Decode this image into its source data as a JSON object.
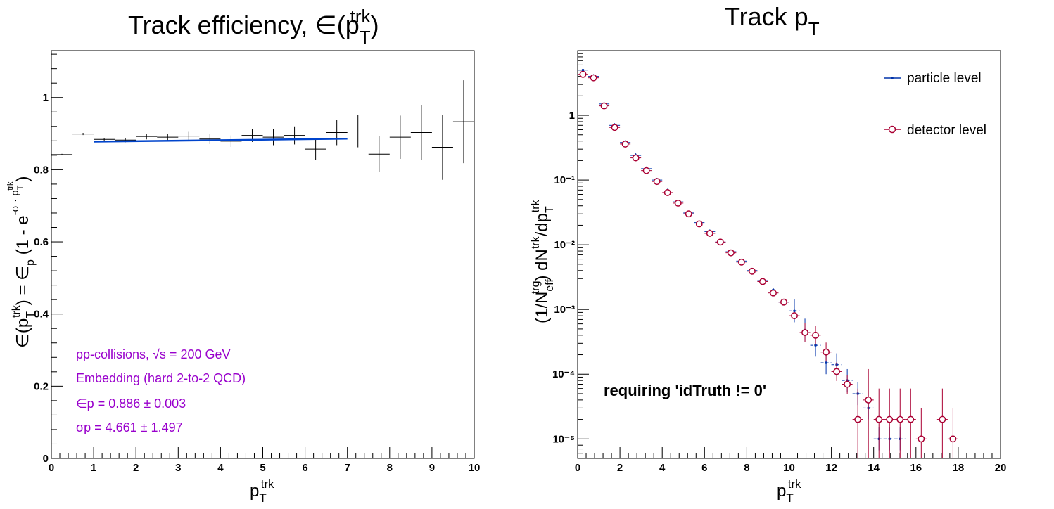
{
  "colors": {
    "fit": "#0044cc",
    "annotation": "#9900cc",
    "particle": "#0033aa",
    "detector": "#aa0033"
  },
  "chart_data": [
    {
      "type": "scatter",
      "title_main": "Track efficiency, ∈(p",
      "title_sup": "trk",
      "title_sub": "T",
      "title_close": ")",
      "xlabel_main": "p",
      "xlabel_sup": "trk",
      "xlabel_sub": "T",
      "ylabel": "∈(pTtrk) = ∈p (1 - e-σ · pTtrk)",
      "xlim": [
        0,
        10
      ],
      "ylim": [
        0,
        1.13
      ],
      "x_ticks": [
        0,
        1,
        2,
        3,
        4,
        5,
        6,
        7,
        8,
        9,
        10
      ],
      "y_ticks": [
        0,
        0.2,
        0.4,
        0.6,
        0.8,
        1
      ],
      "grid": false,
      "bin_width": 0.5,
      "series": [
        {
          "x": [
            0.25,
            0.75,
            1.25,
            1.75,
            2.25,
            2.75,
            3.25,
            3.75,
            4.25,
            4.75,
            5.25,
            5.75,
            6.25,
            6.75,
            7.25,
            7.75,
            8.25,
            8.75,
            9.25,
            9.75
          ],
          "y": [
            0.842,
            0.899,
            0.884,
            0.882,
            0.892,
            0.89,
            0.893,
            0.885,
            0.879,
            0.895,
            0.89,
            0.895,
            0.857,
            0.903,
            0.907,
            0.843,
            0.89,
            0.903,
            0.862,
            0.933
          ],
          "yerr": [
            0.002,
            0.003,
            0.004,
            0.006,
            0.008,
            0.01,
            0.012,
            0.014,
            0.016,
            0.018,
            0.022,
            0.025,
            0.03,
            0.035,
            0.045,
            0.05,
            0.06,
            0.075,
            0.09,
            0.115
          ]
        }
      ],
      "fit": {
        "type": "line",
        "x_range": [
          1.0,
          7.0
        ],
        "epsilon_p": 0.886,
        "sigma_p": 4.661
      },
      "annotations": [
        "pp-collisions, √s = 200 GeV",
        "Embedding (hard 2-to-2 QCD)",
        "∈p = 0.886 ± 0.003",
        "σp = 4.661 ± 1.497"
      ]
    },
    {
      "type": "scatter",
      "title_main": "Track p",
      "title_sub": "T",
      "xlabel_main": "p",
      "xlabel_sup": "trk",
      "xlabel_sub": "T",
      "ylabel": "(1/Neff^trg) dN^trk/dpT^trk",
      "xlim": [
        0,
        20
      ],
      "ylim": [
        5e-06,
        10
      ],
      "yscale": "log",
      "x_ticks": [
        0,
        2,
        4,
        6,
        8,
        10,
        12,
        14,
        16,
        18,
        20
      ],
      "y_ticks": [
        "10⁻⁵",
        "10⁻⁴",
        "10⁻³",
        "10⁻²",
        "10⁻¹",
        "1"
      ],
      "grid": false,
      "legend": {
        "placement": "top-right",
        "entries": [
          "particle level",
          "detector level"
        ]
      },
      "annotation": "requiring 'idTruth != 0'",
      "bin_width": 0.5,
      "series": [
        {
          "name": "particle level",
          "x": [
            0.25,
            0.75,
            1.25,
            1.75,
            2.25,
            2.75,
            3.25,
            3.75,
            4.25,
            4.75,
            5.25,
            5.75,
            6.25,
            6.75,
            7.25,
            7.75,
            8.25,
            8.75,
            9.25,
            9.75,
            10.25,
            10.75,
            11.25,
            11.75,
            12.25,
            12.75,
            13.25,
            13.75,
            14.25,
            14.75,
            15.25
          ],
          "y": [
            5.0,
            4.0,
            1.5,
            0.7,
            0.38,
            0.24,
            0.15,
            0.1,
            0.068,
            0.046,
            0.031,
            0.022,
            0.016,
            0.011,
            0.0078,
            0.0056,
            0.004,
            0.0028,
            0.002,
            0.0013,
            0.00095,
            0.00048,
            0.00028,
            0.00015,
            0.00014,
            8e-05,
            5e-05,
            3e-05,
            1e-05,
            1e-05,
            1e-05
          ]
        },
        {
          "name": "detector level",
          "x": [
            0.25,
            0.75,
            1.25,
            1.75,
            2.25,
            2.75,
            3.25,
            3.75,
            4.25,
            4.75,
            5.25,
            5.75,
            6.25,
            6.75,
            7.25,
            7.75,
            8.25,
            8.75,
            9.25,
            9.75,
            10.25,
            10.75,
            11.25,
            11.75,
            12.25,
            12.75,
            13.25,
            13.75,
            14.25,
            14.75,
            15.25,
            15.75,
            16.25,
            17.25,
            17.75
          ],
          "y": [
            4.3,
            3.8,
            1.4,
            0.65,
            0.36,
            0.22,
            0.14,
            0.095,
            0.064,
            0.044,
            0.03,
            0.021,
            0.015,
            0.011,
            0.0075,
            0.0054,
            0.0039,
            0.0027,
            0.0018,
            0.0013,
            0.0008,
            0.00044,
            0.0004,
            0.00022,
            0.00011,
            7e-05,
            2e-05,
            4e-05,
            2e-05,
            2e-05,
            2e-05,
            2e-05,
            1e-05,
            2e-05,
            1e-05
          ]
        }
      ]
    }
  ]
}
